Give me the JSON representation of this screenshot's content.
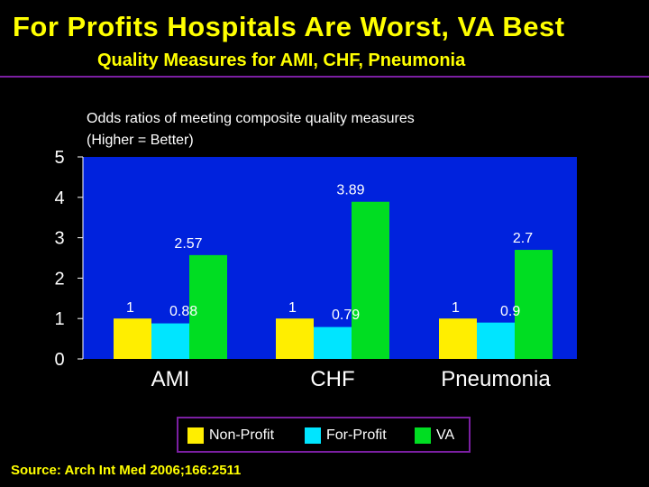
{
  "slide": {
    "title": "For Profits Hospitals Are Worst, VA Best",
    "subtitle": "Quality Measures for AMI, CHF, Pneumonia",
    "source": "Source: Arch Int Med 2006;166:2511"
  },
  "colors": {
    "plot_background": "#0022dd",
    "Non-Profit": "#ffee00",
    "For-Profit": "#00e5ff",
    "VA": "#00dd22"
  },
  "chart_data": {
    "type": "bar",
    "title": "Odds ratios of meeting composite quality measures",
    "title_line2": "(Higher = Better)",
    "categories": [
      "AMI",
      "CHF",
      "Pneumonia"
    ],
    "series": [
      {
        "name": "Non-Profit",
        "values": [
          1,
          1,
          1
        ],
        "labels": [
          "1",
          "1",
          "1"
        ]
      },
      {
        "name": "For-Profit",
        "values": [
          0.88,
          0.79,
          0.9
        ],
        "labels": [
          "0.88",
          "0.79",
          "0.9"
        ]
      },
      {
        "name": "VA",
        "values": [
          2.57,
          3.89,
          2.7
        ],
        "labels": [
          "2.57",
          "3.89",
          "2.7"
        ]
      }
    ],
    "ylim": [
      0,
      5
    ],
    "yticks": [
      0,
      1,
      2,
      3,
      4,
      5
    ],
    "legend": "bottom"
  }
}
